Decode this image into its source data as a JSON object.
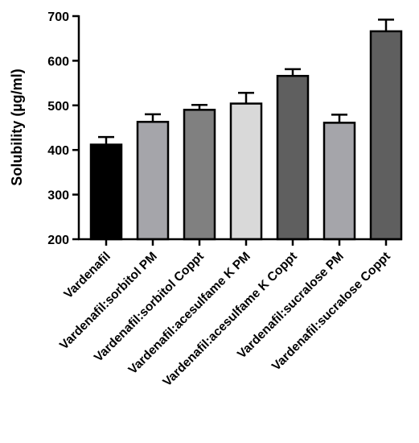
{
  "chart_data": {
    "type": "bar",
    "title": "",
    "xlabel": "",
    "ylabel": "Solubility (µg/ml)",
    "ylim": [
      200,
      700
    ],
    "yticks": [
      200,
      300,
      400,
      500,
      600,
      700
    ],
    "grid": false,
    "categories": [
      "Vardenafil",
      "Vardenafil:sorbitol PM",
      "Vardenafil:sorbitol Coppt",
      "Vardenafil:acesulfame K PM",
      "Vardenafil:acesulfame K Coppt",
      "Vardenafil:sucralose PM",
      "Vardenafil:sucralose Coppt"
    ],
    "values": [
      412,
      463,
      490,
      504,
      566,
      461,
      666
    ],
    "errors": [
      17,
      17,
      11,
      24,
      15,
      18,
      26
    ],
    "colors": [
      "#000000",
      "#a5a5aa",
      "#808080",
      "#d9d9d9",
      "#5f5f5f",
      "#a5a5aa",
      "#5f5f5f"
    ]
  }
}
